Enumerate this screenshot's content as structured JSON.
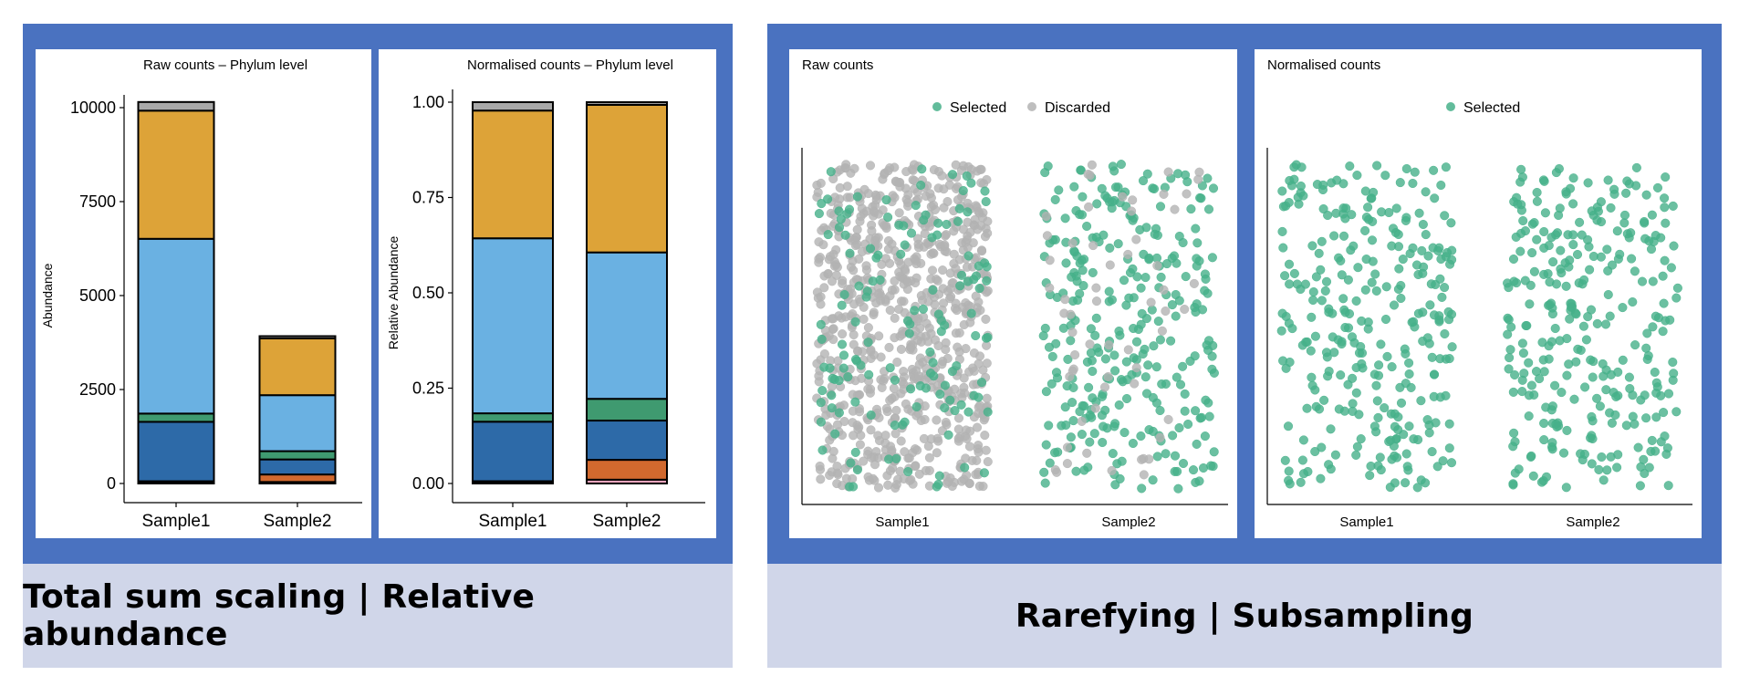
{
  "panels": {
    "left_caption": "Total sum scaling | Relative abundance",
    "right_caption": "Rarefying | Subsampling"
  },
  "colors": {
    "frame": "#4a72c0",
    "caption_band": "#d0d6e9",
    "selected": "#46b08a",
    "discarded": "#b3b3b3",
    "phyla": [
      "#f2a6be",
      "#d2692e",
      "#2d6aa8",
      "#3f9a70",
      "#6ab1e2",
      "#dda338",
      "#a9a9a9"
    ]
  },
  "chart_data": [
    {
      "type": "bar",
      "stacked": true,
      "title": "Raw counts – Phylum level",
      "xlabel": "",
      "ylabel": "Abundance",
      "categories": [
        "Sample1",
        "Sample2"
      ],
      "ylim": [
        0,
        10000
      ],
      "yticks": [
        0,
        2500,
        5000,
        7500,
        10000
      ],
      "ytick_labels": [
        "0",
        "2500",
        "5000",
        "7500",
        "10000"
      ],
      "series": [
        {
          "values": [
            20,
            40
          ],
          "color": "#f2a6be"
        },
        {
          "values": [
            40,
            200
          ],
          "color": "#d2692e"
        },
        {
          "values": [
            1580,
            400
          ],
          "color": "#2d6aa8"
        },
        {
          "values": [
            220,
            220
          ],
          "color": "#3f9a70"
        },
        {
          "values": [
            4650,
            1490
          ],
          "color": "#6ab1e2"
        },
        {
          "values": [
            3410,
            1510
          ],
          "color": "#dda338"
        },
        {
          "values": [
            230,
            60
          ],
          "color": "#a9a9a9"
        }
      ]
    },
    {
      "type": "bar",
      "stacked": true,
      "title": "Normalised counts – Phylum level",
      "xlabel": "",
      "ylabel": "Relative Abundance",
      "categories": [
        "Sample1",
        "Sample2"
      ],
      "ylim": [
        0,
        1
      ],
      "yticks": [
        0,
        0.25,
        0.5,
        0.75,
        1.0
      ],
      "ytick_labels": [
        "0.00",
        "0.25",
        "0.50",
        "0.75",
        "1.00"
      ],
      "series": [
        {
          "values": [
            0.002,
            0.01
          ],
          "color": "#f2a6be"
        },
        {
          "values": [
            0.004,
            0.052
          ],
          "color": "#d2692e"
        },
        {
          "values": [
            0.156,
            0.103
          ],
          "color": "#2d6aa8"
        },
        {
          "values": [
            0.022,
            0.057
          ],
          "color": "#3f9a70"
        },
        {
          "values": [
            0.459,
            0.384
          ],
          "color": "#6ab1e2"
        },
        {
          "values": [
            0.335,
            0.387
          ],
          "color": "#dda338"
        },
        {
          "values": [
            0.022,
            0.007
          ],
          "color": "#a9a9a9"
        }
      ]
    },
    {
      "type": "scatter",
      "title": "Raw counts",
      "xlabel": "",
      "ylabel": "",
      "categories": [
        "Sample1",
        "Sample2"
      ],
      "legend": {
        "position": "top",
        "entries": [
          "Selected",
          "Discarded"
        ]
      },
      "jitter_points": [
        {
          "category": "Sample1",
          "status": "Discarded",
          "count": 780
        },
        {
          "category": "Sample1",
          "status": "Selected",
          "count": 140
        },
        {
          "category": "Sample2",
          "status": "Selected",
          "count": 300
        },
        {
          "category": "Sample2",
          "status": "Discarded",
          "count": 60
        }
      ]
    },
    {
      "type": "scatter",
      "title": "Normalised counts",
      "xlabel": "",
      "ylabel": "",
      "categories": [
        "Sample1",
        "Sample2"
      ],
      "legend": {
        "position": "top",
        "entries": [
          "Selected"
        ]
      },
      "jitter_points": [
        {
          "category": "Sample1",
          "status": "Selected",
          "count": 300
        },
        {
          "category": "Sample2",
          "status": "Selected",
          "count": 300
        }
      ]
    }
  ]
}
